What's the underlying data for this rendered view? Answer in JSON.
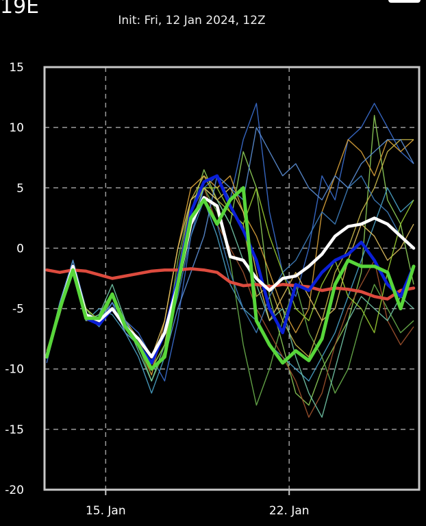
{
  "header": {
    "corner_label": "19E",
    "init": "Init: Fri, 12 Jan 2024, 12Z"
  },
  "chart_data": {
    "type": "line",
    "title": "Init: Fri, 12 Jan 2024, 12Z",
    "xlabel": "",
    "ylabel": "",
    "ylim": [
      -20,
      15
    ],
    "xlim": [
      "2024-01-12T16Z",
      "2024-01-26T23Z"
    ],
    "yticks": [
      15,
      10,
      5,
      0,
      -5,
      -10,
      -15,
      -20
    ],
    "xticks": [
      {
        "date": "2024-01-15T00Z",
        "label": "15. Jan"
      },
      {
        "date": "2024-01-22T00Z",
        "label": "22. Jan"
      }
    ],
    "grid": true,
    "background": "#000000",
    "x": [
      "2024-01-12T18Z",
      "2024-01-13T06Z",
      "2024-01-13T18Z",
      "2024-01-14T06Z",
      "2024-01-14T18Z",
      "2024-01-15T06Z",
      "2024-01-15T18Z",
      "2024-01-16T06Z",
      "2024-01-16T18Z",
      "2024-01-17T06Z",
      "2024-01-17T18Z",
      "2024-01-18T06Z",
      "2024-01-18T18Z",
      "2024-01-19T06Z",
      "2024-01-19T18Z",
      "2024-01-20T06Z",
      "2024-01-20T18Z",
      "2024-01-21T06Z",
      "2024-01-21T18Z",
      "2024-01-22T06Z",
      "2024-01-22T18Z",
      "2024-01-23T06Z",
      "2024-01-23T18Z",
      "2024-01-24T06Z",
      "2024-01-24T18Z",
      "2024-01-25T06Z",
      "2024-01-25T18Z",
      "2024-01-26T06Z",
      "2024-01-26T18Z"
    ],
    "members": [
      {
        "color": "#3b6fd1",
        "values": [
          -9.5,
          -5,
          -1,
          -5,
          -6.5,
          -4.5,
          -6,
          -7,
          -9,
          -11,
          -6,
          1,
          5,
          6,
          4,
          9,
          12,
          3,
          -2,
          -4,
          0,
          6,
          4,
          9,
          10,
          12,
          10,
          8,
          7
        ]
      },
      {
        "color": "#8fcf5a",
        "values": [
          -9,
          -5.5,
          -1.5,
          -6,
          -5.5,
          -4,
          -7,
          -8,
          -10,
          -8,
          -2,
          3,
          6.5,
          4,
          2,
          8,
          5,
          -4,
          -8,
          -12,
          -13,
          -10,
          -8,
          -6,
          -2,
          11,
          4,
          2,
          -3
        ]
      },
      {
        "color": "#d9a23a",
        "values": [
          -8.5,
          -5,
          -2,
          -5.5,
          -6,
          -5,
          -6.5,
          -8,
          -10.5,
          -6,
          0,
          5,
          6,
          5,
          6,
          3,
          1,
          -2,
          -5,
          -7,
          -5,
          3,
          6,
          9,
          8,
          6,
          9,
          8,
          9
        ]
      },
      {
        "color": "#4aa3c8",
        "values": [
          -9,
          -4.5,
          -1,
          -6,
          -5,
          -5.5,
          -7,
          -9,
          -12,
          -9,
          -3,
          2,
          4,
          1,
          -3,
          -5,
          -6,
          -8,
          -9,
          -10,
          -11,
          -9,
          -7,
          -4,
          -1,
          2,
          5,
          3,
          4
        ]
      },
      {
        "color": "#6ab04c",
        "values": [
          -9,
          -5,
          -1.5,
          -5,
          -6.5,
          -4,
          -6,
          -8,
          -11,
          -8.5,
          -1,
          4,
          5,
          3,
          -1,
          -8,
          -13,
          -10,
          -6,
          -3,
          -7,
          -9,
          -12,
          -10,
          -6,
          -3,
          -5,
          -7,
          -6
        ]
      },
      {
        "color": "#a0522d",
        "values": [
          -9,
          -5,
          -2,
          -6,
          -6,
          -5,
          -6.5,
          -7.5,
          -10,
          -7,
          -2,
          3,
          5,
          2,
          0,
          -2,
          -5,
          -7,
          -9,
          -11,
          -14,
          -12,
          -8,
          -5,
          -3,
          -1,
          -6,
          -8,
          -6.5
        ]
      },
      {
        "color": "#c9b84a",
        "values": [
          -9,
          -5,
          -1,
          -5.5,
          -6,
          -5,
          -6,
          -8,
          -9.5,
          -7,
          -2,
          4,
          6,
          4,
          3,
          2,
          -4,
          -3,
          -6,
          -8,
          -9,
          -6,
          -2,
          0,
          3,
          5,
          8,
          9,
          9
        ]
      },
      {
        "color": "#5b8fd6",
        "values": [
          -9,
          -4.5,
          -1,
          -5,
          -6,
          -4.5,
          -7,
          -8,
          -10,
          -9,
          -5,
          -2,
          1,
          6,
          5,
          4,
          10,
          8,
          6,
          7,
          5,
          4,
          6,
          5,
          7,
          8,
          9,
          9,
          7
        ]
      },
      {
        "color": "#72c7a8",
        "values": [
          -9,
          -5,
          -1.5,
          -6,
          -5.5,
          -3,
          -6,
          -8.5,
          -11,
          -8,
          -3,
          2,
          5,
          4,
          2,
          -1,
          -3,
          -6,
          -5,
          -9,
          -12,
          -14,
          -10,
          -6,
          -4,
          -5,
          -6,
          -4,
          -5
        ]
      },
      {
        "color": "#e0c060",
        "values": [
          -9,
          -5,
          -2,
          -5,
          -6,
          -5,
          -6,
          -7.5,
          -9,
          -6,
          0,
          4,
          5,
          4,
          5,
          3,
          -2,
          -6,
          -4,
          -2,
          -4,
          -6,
          -5,
          -1,
          2,
          1,
          -1,
          0,
          2
        ]
      },
      {
        "color": "#3f7fbf",
        "values": [
          -9,
          -5,
          -1,
          -5.5,
          -6.5,
          -5,
          -6,
          -8,
          -10,
          -8,
          -4,
          1,
          4,
          2,
          -2,
          -5,
          -7,
          -4,
          -2,
          -1,
          1,
          3,
          2,
          5,
          6,
          4,
          3,
          1,
          0
        ]
      },
      {
        "color": "#9acd32",
        "values": [
          -9,
          -5,
          -1.5,
          -5,
          -6,
          -4,
          -6.5,
          -8,
          -10,
          -8,
          -2,
          3,
          5,
          5,
          3,
          2,
          5,
          1,
          -2,
          -5,
          -6,
          -3,
          -1,
          -4,
          -5,
          -7,
          -2,
          2,
          4
        ]
      }
    ],
    "series": [
      {
        "color": "#dd4b3e",
        "width": 4.5,
        "values": [
          -1.8,
          -2,
          -1.8,
          -1.9,
          -2.2,
          -2.5,
          -2.3,
          -2.1,
          -1.9,
          -1.8,
          -1.8,
          -1.7,
          -1.8,
          -2.0,
          -2.8,
          -3.1,
          -3.0,
          -3.2,
          -3.0,
          -3.1,
          -3.2,
          -3.5,
          -3.3,
          -3.4,
          -3.6,
          -4.0,
          -4.2,
          -3.5,
          -3.3
        ]
      },
      {
        "color": "#0a1fd8",
        "width": 4.5,
        "values": [
          -9,
          -5,
          -1.5,
          -5.8,
          -6.3,
          -5,
          -6.5,
          -8,
          -9.5,
          -7,
          -2.5,
          3,
          5.5,
          6,
          3.5,
          1.5,
          -1,
          -5,
          -7,
          -3,
          -3.5,
          -2,
          -1,
          -0.5,
          0.5,
          -1,
          -3,
          -4,
          -1.5
        ]
      },
      {
        "color": "#ffffff",
        "width": 4.5,
        "values": [
          -9,
          -5,
          -1.5,
          -5.5,
          -6,
          -5,
          -6.5,
          -7.5,
          -9,
          -7,
          -3,
          2,
          4.2,
          3.5,
          -0.7,
          -1,
          -2.5,
          -3.5,
          -2.5,
          -2.3,
          -1.5,
          -0.5,
          1,
          1.8,
          2,
          2.5,
          2,
          1,
          0
        ]
      },
      {
        "color": "#58d63a",
        "width": 5,
        "values": [
          -9,
          -5,
          -1.8,
          -5.8,
          -5.8,
          -3.8,
          -6.5,
          -8,
          -10,
          -9,
          -3,
          2.5,
          4,
          2,
          4,
          5,
          -6,
          -8,
          -9.5,
          -8.5,
          -9.3,
          -7.5,
          -3,
          -1,
          -1.5,
          -1.5,
          -2,
          -5,
          -1.5
        ]
      }
    ]
  }
}
